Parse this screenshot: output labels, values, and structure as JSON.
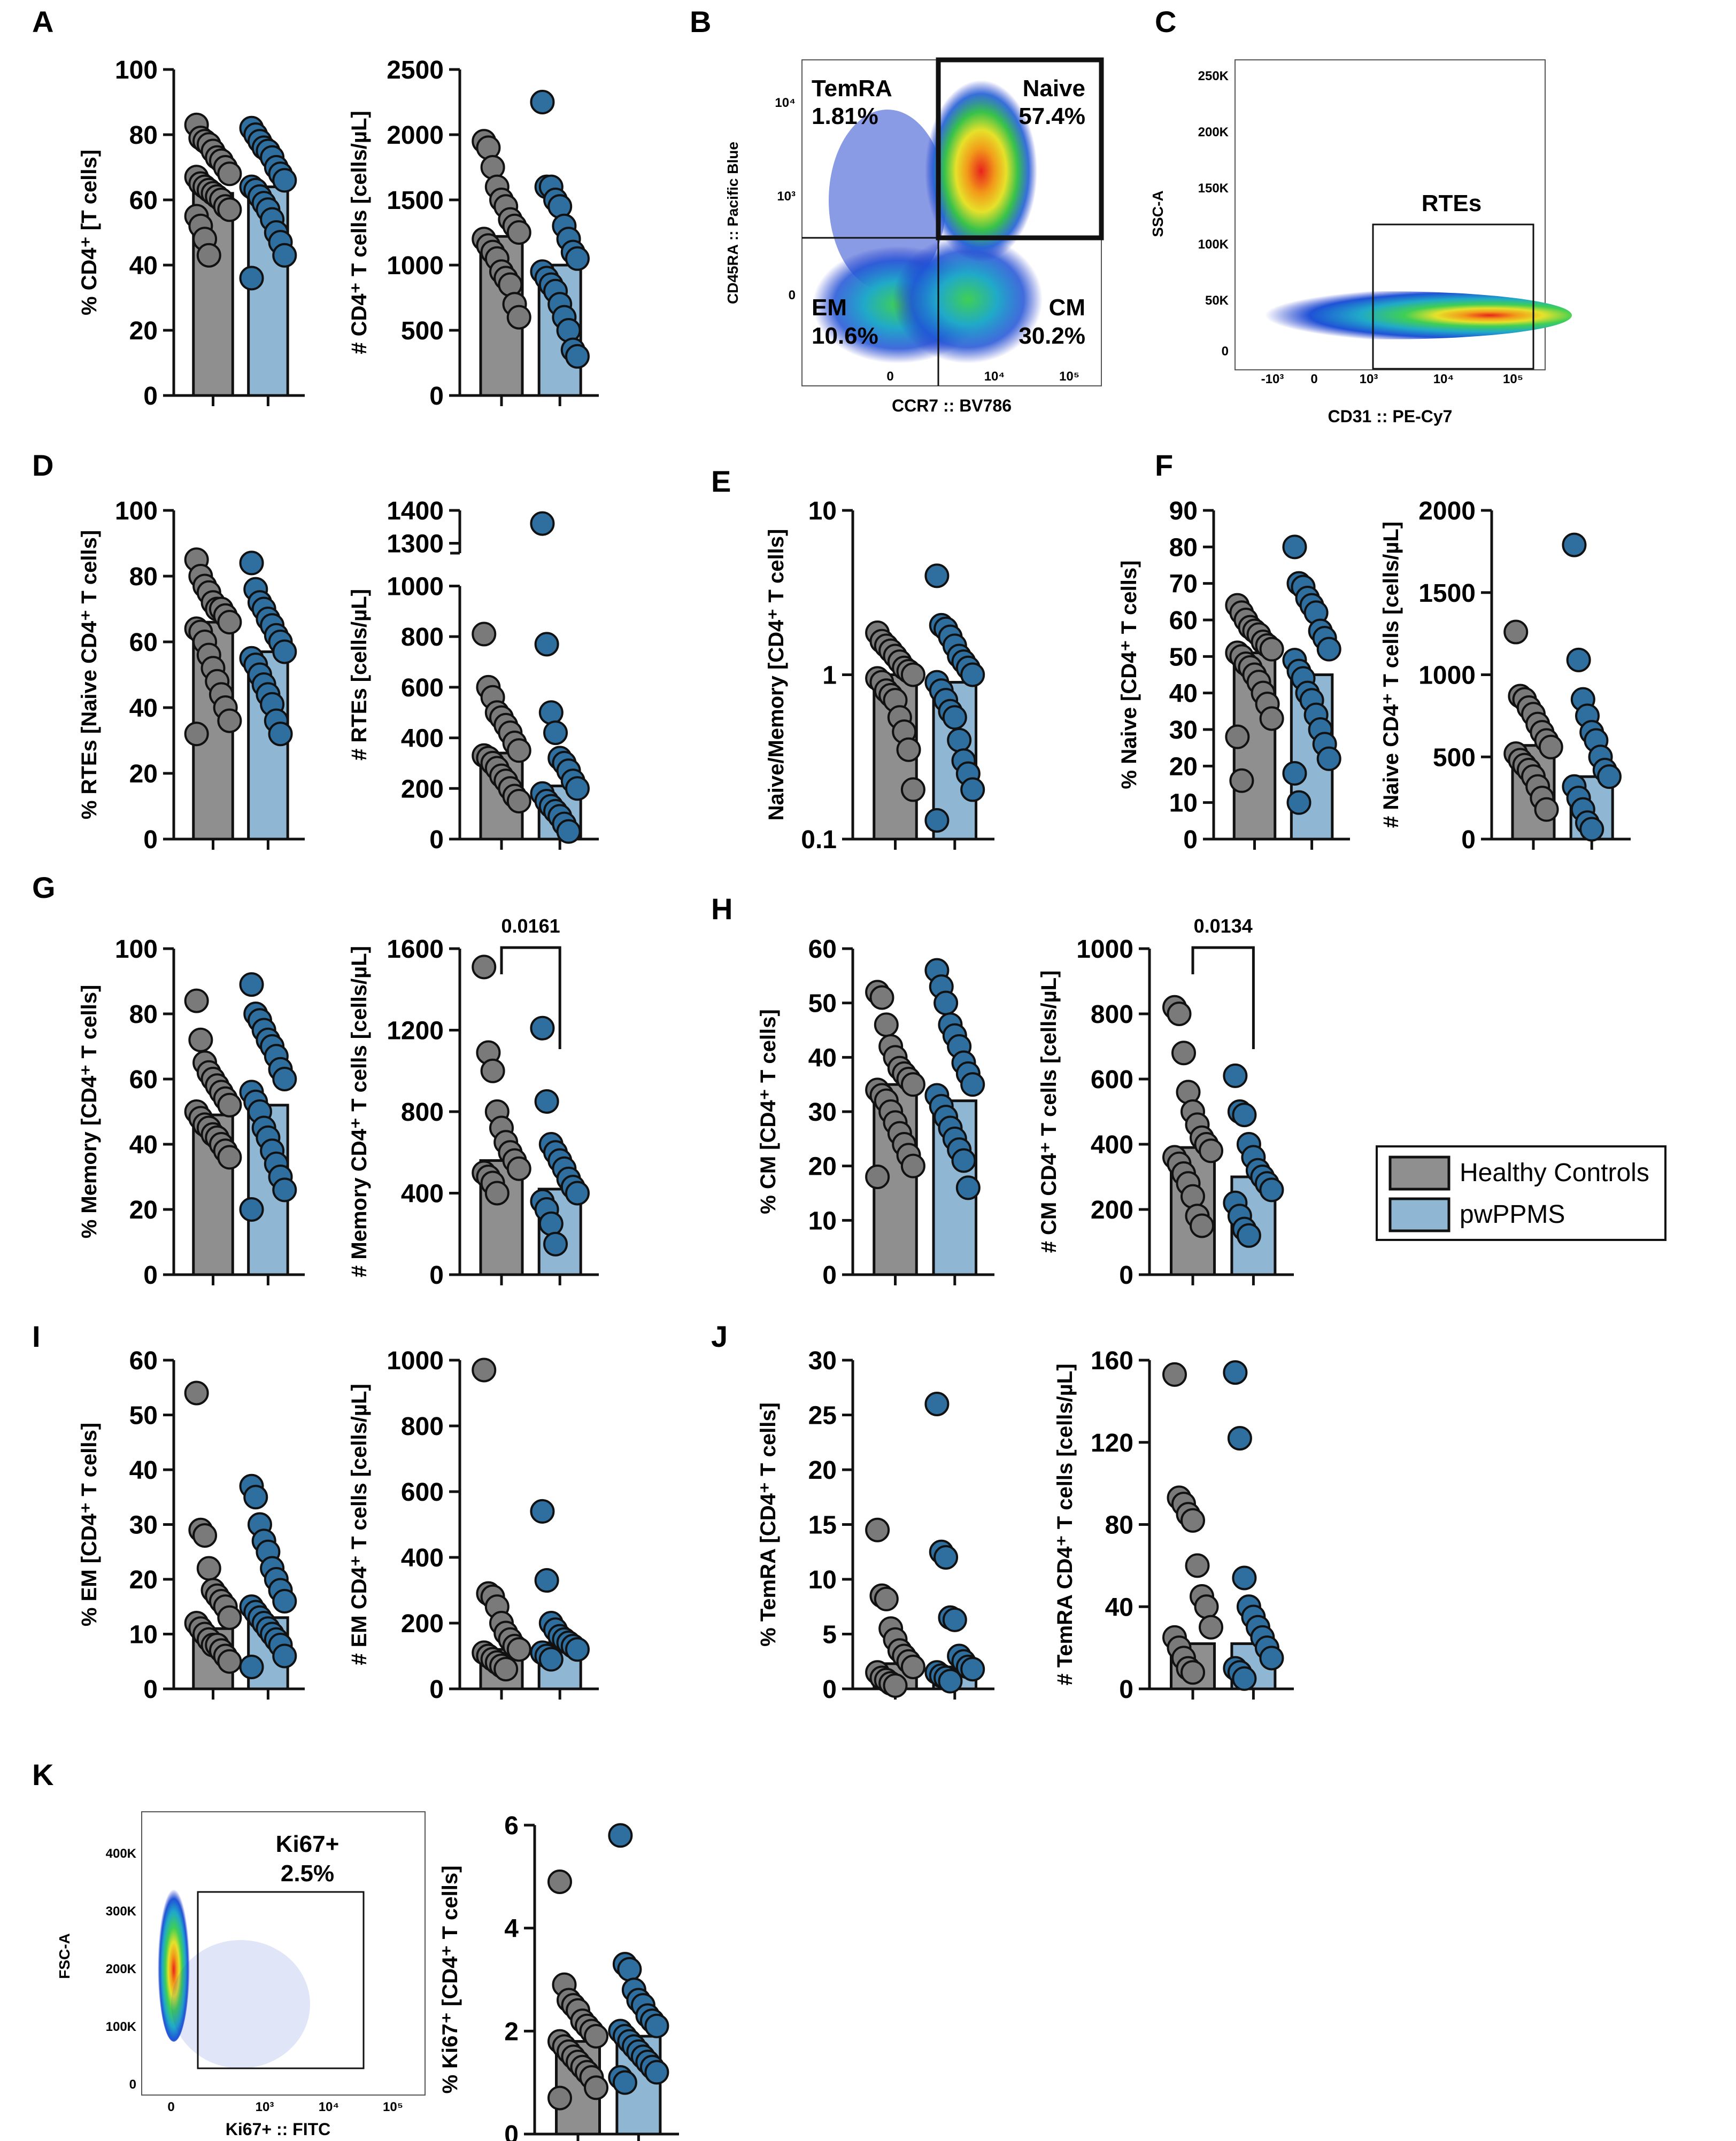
{
  "colors": {
    "hc_fill": "#8f8f8f",
    "ppms_fill": "#8fb6d3",
    "hc_dot": "#7a7a7a",
    "ppms_dot": "#2e6fa0",
    "edge": "#111111"
  },
  "legend": {
    "hc": "Healthy Controls",
    "ppms": "pwPPMS"
  },
  "chart_data": [
    {
      "type": "bar",
      "id": "A1",
      "panel": "A",
      "ylabel": "% CD4⁺ [T cells]",
      "ylim": [
        0,
        100
      ],
      "yticks": [
        0,
        20,
        40,
        60,
        80,
        100
      ],
      "tick_labels": [
        "0",
        "20",
        "40",
        "60",
        "80",
        "100"
      ],
      "categories": [
        "Healthy Controls",
        "pwPPMS"
      ],
      "values": [
        62,
        64
      ],
      "points": [
        [
          83,
          79,
          78,
          77,
          75,
          73,
          72,
          70,
          68,
          67,
          65,
          64,
          63,
          62,
          61,
          60,
          58,
          57,
          55,
          52,
          48,
          43
        ],
        [
          82,
          80,
          78,
          76,
          75,
          73,
          70,
          68,
          66,
          64,
          63,
          61,
          59,
          57,
          54,
          50,
          47,
          43,
          36
        ]
      ]
    },
    {
      "type": "bar",
      "id": "A2",
      "ylabel": "# CD4⁺ T cells [cells/µL]",
      "ylim": [
        0,
        2500
      ],
      "yticks": [
        0,
        500,
        1000,
        1500,
        2000,
        2500
      ],
      "tick_labels": [
        "0",
        "500",
        "1000",
        "1500",
        "2000",
        "2500"
      ],
      "categories": [
        "Healthy Controls",
        "pwPPMS"
      ],
      "values": [
        1220,
        1000
      ],
      "points": [
        [
          1950,
          1900,
          1750,
          1600,
          1500,
          1450,
          1350,
          1300,
          1250,
          1200,
          1150,
          1100,
          1050,
          950,
          900,
          850,
          700,
          600
        ],
        [
          2250,
          1600,
          1600,
          1500,
          1450,
          1300,
          1200,
          1100,
          1050,
          950,
          900,
          850,
          800,
          700,
          600,
          500,
          350,
          300
        ]
      ]
    },
    {
      "type": "bar",
      "id": "D1",
      "panel": "D",
      "ylabel": "% RTEs [Naive CD4⁺ T cells]",
      "ylim": [
        0,
        100
      ],
      "yticks": [
        0,
        20,
        40,
        60,
        80,
        100
      ],
      "tick_labels": [
        "0",
        "20",
        "40",
        "60",
        "80",
        "100"
      ],
      "categories": [
        "Healthy Controls",
        "pwPPMS"
      ],
      "values": [
        66,
        57
      ],
      "points": [
        [
          85,
          80,
          77,
          75,
          72,
          70,
          70,
          68,
          66,
          64,
          63,
          60,
          56,
          52,
          48,
          44,
          40,
          36,
          32
        ],
        [
          84,
          76,
          72,
          70,
          67,
          65,
          62,
          60,
          57,
          55,
          53,
          50,
          47,
          44,
          41,
          36,
          32
        ]
      ]
    },
    {
      "type": "bar",
      "id": "D2",
      "ylabel": "# RTEs  [cells/µL]",
      "ybreak": true,
      "yticks": [
        0,
        200,
        400,
        600,
        800,
        1000,
        1300,
        1400
      ],
      "tick_labels": [
        "0",
        "200",
        "400",
        "600",
        "800",
        "1000",
        "1300",
        "1400"
      ],
      "categories": [
        "Healthy Controls",
        "pwPPMS"
      ],
      "values": [
        340,
        210
      ],
      "points": [
        [
          810,
          600,
          560,
          500,
          480,
          450,
          420,
          380,
          350,
          330,
          320,
          300,
          280,
          250,
          230,
          200,
          170,
          150
        ],
        [
          1360,
          770,
          500,
          420,
          320,
          300,
          270,
          230,
          200,
          180,
          150,
          130,
          110,
          90,
          60,
          30
        ]
      ]
    },
    {
      "type": "bar",
      "id": "E",
      "panel": "E",
      "ylabel": "Naive/Memory [CD4⁺ T cells]",
      "yscale": "log",
      "ylim": [
        0.1,
        10
      ],
      "yticks": [
        0.1,
        1,
        10
      ],
      "tick_labels": [
        "0.1",
        "1",
        "10"
      ],
      "categories": [
        "Healthy Controls",
        "pwPPMS"
      ],
      "values": [
        1.0,
        0.9
      ],
      "points": [
        [
          1.8,
          1.6,
          1.5,
          1.4,
          1.3,
          1.2,
          1.1,
          1.05,
          1.0,
          0.95,
          0.9,
          0.8,
          0.75,
          0.7,
          0.55,
          0.45,
          0.35,
          0.2
        ],
        [
          4.0,
          2.0,
          1.9,
          1.7,
          1.5,
          1.3,
          1.2,
          1.1,
          1.0,
          0.9,
          0.8,
          0.7,
          0.6,
          0.55,
          0.4,
          0.3,
          0.25,
          0.2,
          0.13
        ]
      ]
    },
    {
      "type": "bar",
      "id": "F1",
      "panel": "F",
      "ylabel": "% Naive [CD4⁺ T cells]",
      "ylim": [
        0,
        90
      ],
      "yticks": [
        0,
        10,
        20,
        30,
        40,
        50,
        60,
        70,
        80,
        90
      ],
      "tick_labels": [
        "0",
        "10",
        "20",
        "30",
        "40",
        "50",
        "60",
        "70",
        "80",
        "90"
      ],
      "categories": [
        "Healthy Controls",
        "pwPPMS"
      ],
      "values": [
        51,
        45
      ],
      "points": [
        [
          64,
          62,
          60,
          58,
          57,
          56,
          54,
          53,
          52,
          51,
          50,
          48,
          47,
          45,
          43,
          40,
          37,
          33,
          28,
          16
        ],
        [
          80,
          70,
          69,
          66,
          64,
          62,
          57,
          55,
          52,
          49,
          46,
          44,
          40,
          38,
          34,
          30,
          26,
          22,
          18,
          10
        ]
      ]
    },
    {
      "type": "bar",
      "id": "F2",
      "ylabel": "# Naive CD4⁺ T cells [cells/µL]",
      "ylim": [
        0,
        2000
      ],
      "yticks": [
        0,
        500,
        1000,
        1500,
        2000
      ],
      "tick_labels": [
        "0",
        "500",
        "1000",
        "1500",
        "2000"
      ],
      "categories": [
        "Healthy Controls",
        "pwPPMS"
      ],
      "values": [
        570,
        380
      ],
      "points": [
        [
          1260,
          870,
          850,
          800,
          760,
          700,
          650,
          600,
          560,
          520,
          480,
          450,
          420,
          380,
          320,
          250,
          180
        ],
        [
          1790,
          1090,
          850,
          750,
          650,
          600,
          500,
          420,
          380,
          320,
          250,
          180,
          100,
          60
        ]
      ]
    },
    {
      "type": "bar",
      "id": "G1",
      "panel": "G",
      "ylabel": "% Memory [CD4⁺ T cells]",
      "ylim": [
        0,
        100
      ],
      "yticks": [
        0,
        20,
        40,
        60,
        80,
        100
      ],
      "tick_labels": [
        "0",
        "20",
        "40",
        "60",
        "80",
        "100"
      ],
      "categories": [
        "Healthy Controls",
        "pwPPMS"
      ],
      "values": [
        49,
        52
      ],
      "points": [
        [
          84,
          72,
          65,
          62,
          60,
          58,
          56,
          54,
          52,
          50,
          48,
          46,
          45,
          43,
          42,
          40,
          38,
          36
        ],
        [
          89,
          80,
          78,
          75,
          72,
          70,
          67,
          63,
          60,
          56,
          53,
          50,
          45,
          42,
          38,
          34,
          30,
          26,
          20
        ]
      ]
    },
    {
      "type": "bar",
      "id": "G2",
      "ylabel": "# Memory CD4⁺ T cells [cells/µL]",
      "ylim": [
        0,
        1600
      ],
      "yticks": [
        0,
        400,
        800,
        1200,
        1600
      ],
      "tick_labels": [
        "0",
        "400",
        "800",
        "1200",
        "1600"
      ],
      "categories": [
        "Healthy Controls",
        "pwPPMS"
      ],
      "values": [
        560,
        420
      ],
      "points": [
        [
          1510,
          1090,
          1000,
          800,
          720,
          650,
          600,
          560,
          520,
          500,
          480,
          450,
          400
        ],
        [
          1210,
          850,
          640,
          600,
          560,
          520,
          470,
          430,
          400,
          360,
          320,
          250,
          150
        ]
      ],
      "annotation": "0.0161"
    },
    {
      "type": "bar",
      "id": "H1",
      "panel": "H",
      "ylabel": "% CM [CD4⁺ T cells]",
      "ylim": [
        0,
        60
      ],
      "yticks": [
        0,
        10,
        20,
        30,
        40,
        50,
        60
      ],
      "tick_labels": [
        "0",
        "10",
        "20",
        "30",
        "40",
        "50",
        "60"
      ],
      "categories": [
        "Healthy Controls",
        "pwPPMS"
      ],
      "values": [
        35,
        32
      ],
      "points": [
        [
          52,
          51,
          46,
          42,
          40,
          38,
          37,
          36,
          35,
          34,
          33,
          32,
          30,
          28,
          26,
          24,
          22,
          20,
          18
        ],
        [
          56,
          53,
          50,
          46,
          44,
          42,
          39,
          37,
          35,
          33,
          31,
          29,
          27,
          25,
          23,
          21,
          16
        ]
      ]
    },
    {
      "type": "bar",
      "id": "H2",
      "ylabel": "# CM CD4⁺ T cells [cells/µL]",
      "ylim": [
        0,
        1000
      ],
      "yticks": [
        0,
        200,
        400,
        600,
        800,
        1000
      ],
      "tick_labels": [
        "0",
        "200",
        "400",
        "600",
        "800",
        "1000"
      ],
      "categories": [
        "Healthy Controls",
        "pwPPMS"
      ],
      "values": [
        390,
        300
      ],
      "points": [
        [
          820,
          800,
          680,
          560,
          500,
          460,
          420,
          400,
          380,
          360,
          340,
          310,
          280,
          240,
          180,
          150
        ],
        [
          610,
          500,
          490,
          400,
          360,
          320,
          300,
          280,
          260,
          220,
          180,
          140,
          120
        ]
      ],
      "annotation": "0.0134"
    },
    {
      "type": "bar",
      "id": "I1",
      "panel": "I",
      "ylabel": "% EM [CD4⁺ T cells]",
      "ylim": [
        0,
        60
      ],
      "yticks": [
        0,
        10,
        20,
        30,
        40,
        50,
        60
      ],
      "tick_labels": [
        "0",
        "10",
        "20",
        "30",
        "40",
        "50",
        "60"
      ],
      "categories": [
        "Healthy Controls",
        "pwPPMS"
      ],
      "values": [
        11,
        13
      ],
      "points": [
        [
          54,
          29,
          28,
          22,
          18,
          17,
          16,
          15,
          13,
          12,
          11,
          10,
          9,
          8,
          8,
          7,
          6,
          5
        ],
        [
          37,
          35,
          30,
          27,
          25,
          22,
          20,
          18,
          16,
          15,
          14,
          13,
          12,
          11,
          10,
          9,
          8,
          6,
          4
        ]
      ]
    },
    {
      "type": "bar",
      "id": "I2",
      "ylabel": "# EM CD4⁺ T cells [cells/µL]",
      "ylim": [
        0,
        1000
      ],
      "yticks": [
        0,
        200,
        400,
        600,
        800,
        1000
      ],
      "tick_labels": [
        "0",
        "200",
        "400",
        "600",
        "800",
        "1000"
      ],
      "categories": [
        "Healthy Controls",
        "pwPPMS"
      ],
      "values": [
        120,
        140
      ],
      "points": [
        [
          970,
          290,
          280,
          250,
          200,
          170,
          150,
          130,
          120,
          110,
          100,
          90,
          80,
          70,
          60
        ],
        [
          540,
          330,
          200,
          180,
          160,
          150,
          140,
          130,
          120,
          110,
          100,
          90
        ]
      ]
    },
    {
      "type": "bar",
      "id": "J1",
      "panel": "J",
      "ylabel": "% TemRA [CD4⁺ T cells]",
      "ylim": [
        0,
        30
      ],
      "yticks": [
        0,
        5,
        10,
        15,
        20,
        25,
        30
      ],
      "tick_labels": [
        "0",
        "5",
        "10",
        "15",
        "20",
        "25",
        "30"
      ],
      "categories": [
        "Healthy Controls",
        "pwPPMS"
      ],
      "values": [
        2.3,
        2.0
      ],
      "points": [
        [
          14.5,
          8.5,
          8.2,
          5.5,
          4.5,
          3.5,
          3.0,
          2.5,
          2.0,
          1.5,
          1.0,
          0.8,
          0.5,
          0.3
        ],
        [
          26,
          12.5,
          12,
          6.5,
          6.3,
          3.0,
          2.5,
          2.0,
          1.8,
          1.5,
          1.2,
          1.0,
          0.7
        ]
      ]
    },
    {
      "type": "bar",
      "id": "J2",
      "ylabel": "# TemRA CD4⁺ T cells [cells/µL]",
      "ylim": [
        0,
        160
      ],
      "yticks": [
        0,
        40,
        80,
        120,
        160
      ],
      "tick_labels": [
        "0",
        "40",
        "80",
        "120",
        "160"
      ],
      "categories": [
        "Healthy Controls",
        "pwPPMS"
      ],
      "values": [
        22,
        22
      ],
      "points": [
        [
          153,
          93,
          90,
          85,
          82,
          60,
          45,
          40,
          30,
          25,
          20,
          15,
          10,
          8
        ],
        [
          154,
          122,
          54,
          40,
          35,
          30,
          25,
          20,
          15,
          10,
          8,
          5
        ]
      ]
    },
    {
      "type": "bar",
      "id": "K2",
      "panel": "K",
      "ylabel": "% Ki67⁺ [CD4⁺ T cells]",
      "ylim": [
        0,
        6
      ],
      "yticks": [
        0,
        2,
        4,
        6
      ],
      "tick_labels": [
        "0",
        "2",
        "4",
        "6"
      ],
      "categories": [
        "Healthy Controls",
        "pwPPMS"
      ],
      "values": [
        1.8,
        1.9
      ],
      "points": [
        [
          4.9,
          2.9,
          2.6,
          2.5,
          2.4,
          2.2,
          2.1,
          2.0,
          1.9,
          1.8,
          1.7,
          1.6,
          1.5,
          1.4,
          1.3,
          1.2,
          1.1,
          0.9,
          0.7
        ],
        [
          5.8,
          3.3,
          3.2,
          2.8,
          2.6,
          2.5,
          2.3,
          2.2,
          2.1,
          2.0,
          1.9,
          1.8,
          1.7,
          1.6,
          1.5,
          1.4,
          1.3,
          1.2,
          1.1,
          1.0
        ]
      ]
    }
  ],
  "flow": {
    "B": {
      "panel": "B",
      "xlabel": "CCR7 :: BV786",
      "ylabel": "CD45RA :: Pacific Blue",
      "x_tick_labels": [
        "0",
        "10⁴",
        "10⁵"
      ],
      "y_tick_labels": [
        "0",
        "10³",
        "10⁴"
      ],
      "gates": [
        {
          "name": "TemRA",
          "pct": "1.81%"
        },
        {
          "name": "Naive",
          "pct": "57.4%"
        },
        {
          "name": "EM",
          "pct": "10.6%"
        },
        {
          "name": "CM",
          "pct": "30.2%"
        }
      ]
    },
    "C": {
      "panel": "C",
      "xlabel": "CD31 :: PE-Cy7",
      "ylabel": "SSC-A",
      "x_tick_labels": [
        "-10³",
        "0",
        "10³",
        "10⁴",
        "10⁵"
      ],
      "y_tick_labels": [
        "0",
        "50K",
        "100K",
        "150K",
        "200K",
        "250K"
      ],
      "gate_label": "RTEs"
    },
    "K": {
      "xlabel": "Ki67+ :: FITC",
      "ylabel": "FSC-A",
      "x_tick_labels": [
        "0",
        "10³",
        "10⁴",
        "10⁵"
      ],
      "y_tick_labels": [
        "0",
        "100K",
        "200K",
        "300K",
        "400K"
      ],
      "gate_label": "Ki67+",
      "gate_pct": "2.5%"
    }
  }
}
